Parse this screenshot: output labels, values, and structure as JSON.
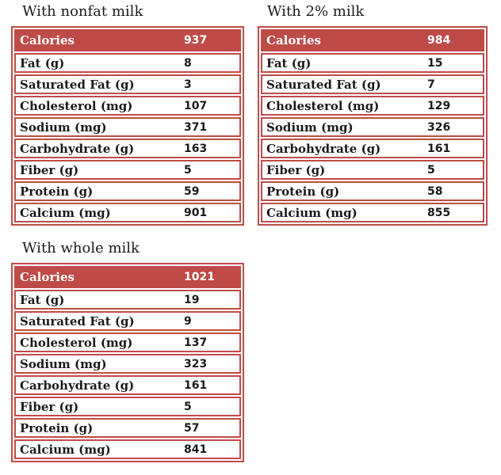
{
  "colors": {
    "accent": "#BE4B48",
    "header_text": "#FFFFFF",
    "body_text": "#1A1A1A",
    "row_background": "#FFFFFF"
  },
  "tables": [
    {
      "id": "nonfat-milk",
      "title": "With nonfat milk",
      "rows": [
        {
          "label": "Calories",
          "value": "937",
          "header": true
        },
        {
          "label": "Fat (g)",
          "value": "8"
        },
        {
          "label": "Saturated Fat (g)",
          "value": "3"
        },
        {
          "label": "Cholesterol (mg)",
          "value": "107"
        },
        {
          "label": "Sodium (mg)",
          "value": "371"
        },
        {
          "label": "Carbohydrate (g)",
          "value": "163"
        },
        {
          "label": "Fiber (g)",
          "value": "5"
        },
        {
          "label": "Protein (g)",
          "value": "59"
        },
        {
          "label": "Calcium (mg)",
          "value": "901"
        }
      ]
    },
    {
      "id": "2-percent-milk",
      "title": "With 2% milk",
      "rows": [
        {
          "label": "Calories",
          "value": "984",
          "header": true
        },
        {
          "label": "Fat (g)",
          "value": "15"
        },
        {
          "label": "Saturated Fat (g)",
          "value": "7"
        },
        {
          "label": "Cholesterol (mg)",
          "value": "129"
        },
        {
          "label": "Sodium (mg)",
          "value": "326"
        },
        {
          "label": "Carbohydrate (g)",
          "value": "161"
        },
        {
          "label": "Fiber (g)",
          "value": "5"
        },
        {
          "label": "Protein (g)",
          "value": "58"
        },
        {
          "label": "Calcium (mg)",
          "value": "855"
        }
      ]
    },
    {
      "id": "whole-milk",
      "title": "With whole milk",
      "rows": [
        {
          "label": "Calories",
          "value": "1021",
          "header": true
        },
        {
          "label": "Fat (g)",
          "value": "19"
        },
        {
          "label": "Saturated Fat (g)",
          "value": "9"
        },
        {
          "label": "Cholesterol (mg)",
          "value": "137"
        },
        {
          "label": "Sodium (mg)",
          "value": "323"
        },
        {
          "label": "Carbohydrate (g)",
          "value": "161"
        },
        {
          "label": "Fiber (g)",
          "value": "5"
        },
        {
          "label": "Protein (g)",
          "value": "57"
        },
        {
          "label": "Calcium (mg)",
          "value": "841"
        }
      ]
    }
  ]
}
